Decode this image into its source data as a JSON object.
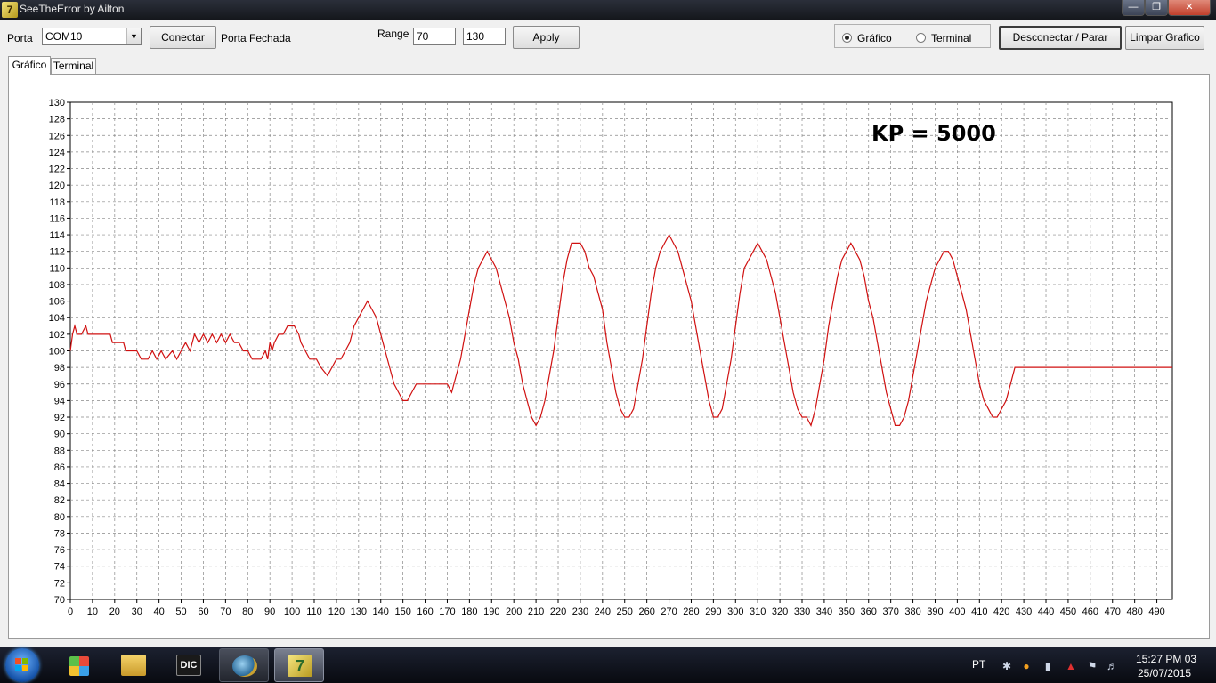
{
  "window": {
    "title": "SeeTheError by Ailton",
    "icon": "app-logo-icon"
  },
  "toolbar": {
    "porta_label": "Porta",
    "porta_value": "COM10",
    "conectar_label": "Conectar",
    "status_text": "Porta Fechada",
    "range_label": "Range",
    "range_min": "70",
    "range_max": "130",
    "apply_label": "Apply",
    "radio_grafico": "Gráfico",
    "radio_terminal": "Terminal",
    "desconectar_label": "Desconectar / Parar",
    "limpar_label": "Limpar Grafico"
  },
  "tabs": [
    {
      "label": "Gráfico"
    },
    {
      "label": "Terminal"
    }
  ],
  "annotation": "KP = 5000",
  "chart_data": {
    "type": "line",
    "ylim": [
      70,
      130
    ],
    "xlim": [
      0,
      497
    ],
    "x_ticks": [
      0,
      10,
      20,
      30,
      40,
      50,
      60,
      70,
      80,
      90,
      100,
      110,
      120,
      130,
      140,
      150,
      160,
      170,
      180,
      190,
      200,
      210,
      220,
      230,
      240,
      250,
      260,
      270,
      280,
      290,
      300,
      310,
      320,
      330,
      340,
      350,
      360,
      370,
      380,
      390,
      400,
      410,
      420,
      430,
      440,
      450,
      460,
      470,
      480,
      490
    ],
    "y_ticks": [
      70,
      72,
      74,
      76,
      78,
      80,
      82,
      84,
      86,
      88,
      90,
      92,
      94,
      96,
      98,
      100,
      102,
      104,
      106,
      108,
      110,
      112,
      114,
      116,
      118,
      120,
      122,
      124,
      126,
      128,
      130
    ],
    "grid": true,
    "series": [
      {
        "color": "#d01010",
        "points": [
          [
            0,
            100
          ],
          [
            1,
            102
          ],
          [
            2,
            103
          ],
          [
            3,
            102
          ],
          [
            5,
            102
          ],
          [
            7,
            103
          ],
          [
            8,
            102
          ],
          [
            10,
            102
          ],
          [
            15,
            102
          ],
          [
            18,
            102
          ],
          [
            19,
            101
          ],
          [
            23,
            101
          ],
          [
            24,
            101
          ],
          [
            25,
            100
          ],
          [
            28,
            100
          ],
          [
            30,
            100
          ],
          [
            32,
            99
          ],
          [
            35,
            99
          ],
          [
            37,
            100
          ],
          [
            39,
            99
          ],
          [
            41,
            100
          ],
          [
            43,
            99
          ],
          [
            46,
            100
          ],
          [
            48,
            99
          ],
          [
            50,
            100
          ],
          [
            52,
            101
          ],
          [
            54,
            100
          ],
          [
            56,
            102
          ],
          [
            58,
            101
          ],
          [
            60,
            102
          ],
          [
            62,
            101
          ],
          [
            64,
            102
          ],
          [
            66,
            101
          ],
          [
            68,
            102
          ],
          [
            70,
            101
          ],
          [
            72,
            102
          ],
          [
            74,
            101
          ],
          [
            76,
            101
          ],
          [
            78,
            100
          ],
          [
            80,
            100
          ],
          [
            82,
            99
          ],
          [
            84,
            99
          ],
          [
            86,
            99
          ],
          [
            88,
            100
          ],
          [
            89,
            99
          ],
          [
            90,
            101
          ],
          [
            91,
            100
          ],
          [
            92,
            101
          ],
          [
            94,
            102
          ],
          [
            96,
            102
          ],
          [
            98,
            103
          ],
          [
            101,
            103
          ],
          [
            103,
            102
          ],
          [
            104,
            101
          ],
          [
            106,
            100
          ],
          [
            108,
            99
          ],
          [
            111,
            99
          ],
          [
            113,
            98
          ],
          [
            116,
            97
          ],
          [
            118,
            98
          ],
          [
            120,
            99
          ],
          [
            122,
            99
          ],
          [
            124,
            100
          ],
          [
            126,
            101
          ],
          [
            128,
            103
          ],
          [
            130,
            104
          ],
          [
            132,
            105
          ],
          [
            134,
            106
          ],
          [
            136,
            105
          ],
          [
            138,
            104
          ],
          [
            140,
            102
          ],
          [
            142,
            100
          ],
          [
            144,
            98
          ],
          [
            146,
            96
          ],
          [
            148,
            95
          ],
          [
            150,
            94
          ],
          [
            152,
            94
          ],
          [
            154,
            95
          ],
          [
            156,
            96
          ],
          [
            166,
            96
          ],
          [
            170,
            96
          ],
          [
            172,
            95
          ],
          [
            174,
            97
          ],
          [
            176,
            99
          ],
          [
            178,
            102
          ],
          [
            180,
            105
          ],
          [
            182,
            108
          ],
          [
            184,
            110
          ],
          [
            186,
            111
          ],
          [
            188,
            112
          ],
          [
            190,
            111
          ],
          [
            192,
            110
          ],
          [
            194,
            108
          ],
          [
            196,
            106
          ],
          [
            198,
            104
          ],
          [
            200,
            101
          ],
          [
            202,
            99
          ],
          [
            204,
            96
          ],
          [
            206,
            94
          ],
          [
            208,
            92
          ],
          [
            210,
            91
          ],
          [
            212,
            92
          ],
          [
            214,
            94
          ],
          [
            216,
            97
          ],
          [
            218,
            100
          ],
          [
            220,
            104
          ],
          [
            222,
            108
          ],
          [
            224,
            111
          ],
          [
            226,
            113
          ],
          [
            228,
            113
          ],
          [
            230,
            113
          ],
          [
            232,
            112
          ],
          [
            234,
            110
          ],
          [
            236,
            109
          ],
          [
            238,
            107
          ],
          [
            240,
            105
          ],
          [
            242,
            101
          ],
          [
            244,
            98
          ],
          [
            246,
            95
          ],
          [
            248,
            93
          ],
          [
            250,
            92
          ],
          [
            252,
            92
          ],
          [
            254,
            93
          ],
          [
            256,
            96
          ],
          [
            258,
            99
          ],
          [
            260,
            103
          ],
          [
            262,
            107
          ],
          [
            264,
            110
          ],
          [
            266,
            112
          ],
          [
            268,
            113
          ],
          [
            270,
            114
          ],
          [
            272,
            113
          ],
          [
            274,
            112
          ],
          [
            276,
            110
          ],
          [
            278,
            108
          ],
          [
            280,
            106
          ],
          [
            282,
            103
          ],
          [
            284,
            100
          ],
          [
            286,
            97
          ],
          [
            288,
            94
          ],
          [
            290,
            92
          ],
          [
            292,
            92
          ],
          [
            294,
            93
          ],
          [
            296,
            96
          ],
          [
            298,
            99
          ],
          [
            300,
            103
          ],
          [
            302,
            107
          ],
          [
            304,
            110
          ],
          [
            306,
            111
          ],
          [
            308,
            112
          ],
          [
            310,
            113
          ],
          [
            312,
            112
          ],
          [
            314,
            111
          ],
          [
            316,
            109
          ],
          [
            318,
            107
          ],
          [
            320,
            104
          ],
          [
            322,
            101
          ],
          [
            324,
            98
          ],
          [
            326,
            95
          ],
          [
            328,
            93
          ],
          [
            330,
            92
          ],
          [
            332,
            92
          ],
          [
            334,
            91
          ],
          [
            336,
            93
          ],
          [
            338,
            96
          ],
          [
            340,
            99
          ],
          [
            342,
            103
          ],
          [
            344,
            106
          ],
          [
            346,
            109
          ],
          [
            348,
            111
          ],
          [
            350,
            112
          ],
          [
            352,
            113
          ],
          [
            354,
            112
          ],
          [
            356,
            111
          ],
          [
            358,
            109
          ],
          [
            360,
            106
          ],
          [
            362,
            104
          ],
          [
            364,
            101
          ],
          [
            366,
            98
          ],
          [
            368,
            95
          ],
          [
            370,
            93
          ],
          [
            372,
            91
          ],
          [
            374,
            91
          ],
          [
            376,
            92
          ],
          [
            378,
            94
          ],
          [
            380,
            97
          ],
          [
            382,
            100
          ],
          [
            384,
            103
          ],
          [
            386,
            106
          ],
          [
            388,
            108
          ],
          [
            390,
            110
          ],
          [
            392,
            111
          ],
          [
            394,
            112
          ],
          [
            396,
            112
          ],
          [
            398,
            111
          ],
          [
            400,
            109
          ],
          [
            402,
            107
          ],
          [
            404,
            105
          ],
          [
            406,
            102
          ],
          [
            408,
            99
          ],
          [
            410,
            96
          ],
          [
            412,
            94
          ],
          [
            414,
            93
          ],
          [
            416,
            92
          ],
          [
            418,
            92
          ],
          [
            420,
            93
          ],
          [
            422,
            94
          ],
          [
            424,
            96
          ],
          [
            426,
            98
          ],
          [
            428,
            98
          ],
          [
            440,
            98
          ],
          [
            460,
            98
          ],
          [
            480,
            98
          ],
          [
            497,
            98
          ]
        ]
      }
    ]
  },
  "taskbar": {
    "language": "PT",
    "time": "15:27 PM 03",
    "date": "25/07/2015",
    "items": [
      "apps-grid-icon",
      "file-explorer-icon",
      "dic-icon",
      "magnifier-tool-icon",
      "seetheerror-icon"
    ]
  }
}
